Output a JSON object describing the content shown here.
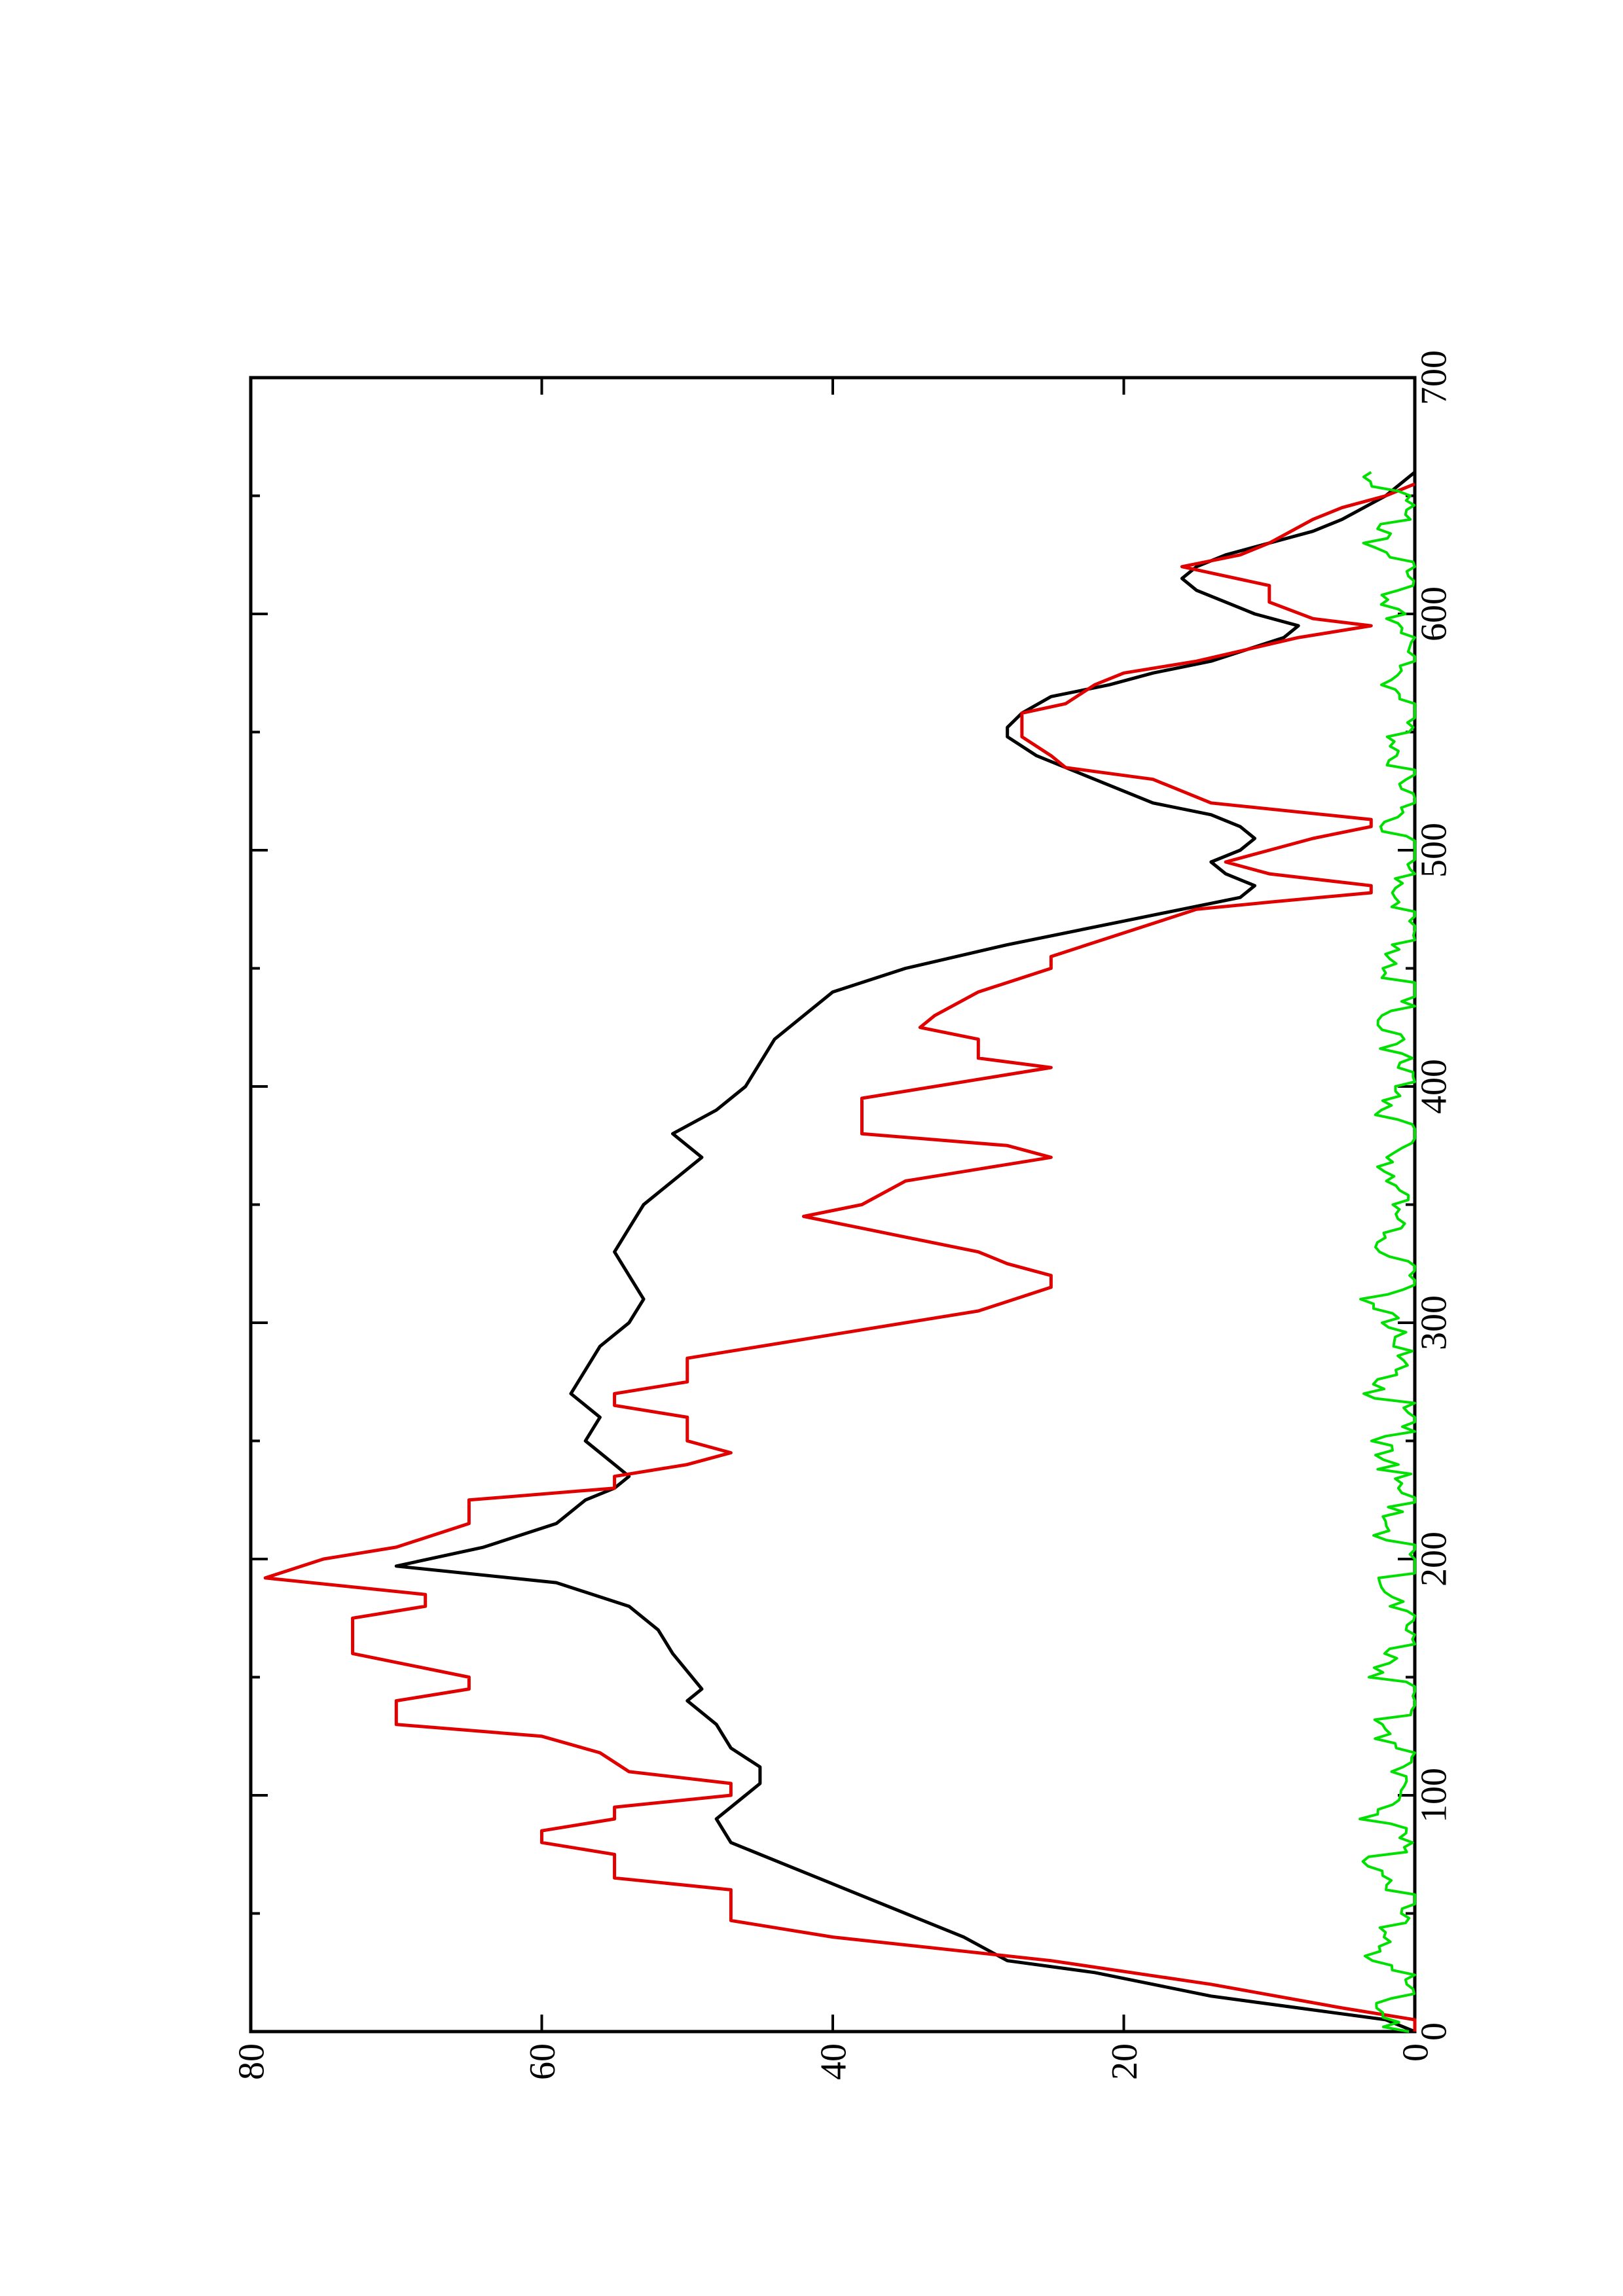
{
  "chart_data": {
    "type": "line",
    "orientation": "rotated-90-ccw",
    "title": "",
    "xlabel": "",
    "ylabel": "",
    "xlim": [
      0,
      700
    ],
    "ylim": [
      0,
      80
    ],
    "x_ticks": [
      0,
      100,
      200,
      300,
      400,
      500,
      600,
      700
    ],
    "x_minor_ticks": [
      50,
      150,
      250,
      350,
      450,
      550,
      650
    ],
    "y_ticks": [
      0,
      20,
      40,
      60,
      80
    ],
    "grid": false,
    "legend": "none",
    "series": [
      {
        "color": "#000000",
        "style": "smooth",
        "points": [
          [
            0,
            0
          ],
          [
            5,
            2
          ],
          [
            10,
            8
          ],
          [
            15,
            14
          ],
          [
            20,
            18
          ],
          [
            25,
            22
          ],
          [
            30,
            28
          ],
          [
            40,
            31
          ],
          [
            50,
            35
          ],
          [
            60,
            39
          ],
          [
            70,
            43
          ],
          [
            80,
            47
          ],
          [
            90,
            48
          ],
          [
            100,
            46
          ],
          [
            105,
            45
          ],
          [
            112,
            45
          ],
          [
            120,
            47
          ],
          [
            130,
            48
          ],
          [
            140,
            50
          ],
          [
            145,
            49
          ],
          [
            160,
            51
          ],
          [
            170,
            52
          ],
          [
            180,
            54
          ],
          [
            190,
            59
          ],
          [
            197,
            70
          ],
          [
            205,
            64
          ],
          [
            215,
            59
          ],
          [
            225,
            57
          ],
          [
            230,
            55
          ],
          [
            235,
            54
          ],
          [
            240,
            55
          ],
          [
            250,
            57
          ],
          [
            260,
            56
          ],
          [
            270,
            58
          ],
          [
            280,
            57
          ],
          [
            290,
            56
          ],
          [
            300,
            54
          ],
          [
            310,
            53
          ],
          [
            320,
            54
          ],
          [
            330,
            55
          ],
          [
            340,
            54
          ],
          [
            350,
            53
          ],
          [
            360,
            51
          ],
          [
            370,
            49
          ],
          [
            380,
            51
          ],
          [
            390,
            48
          ],
          [
            400,
            46
          ],
          [
            410,
            45
          ],
          [
            420,
            44
          ],
          [
            430,
            42
          ],
          [
            440,
            40
          ],
          [
            450,
            35
          ],
          [
            460,
            28
          ],
          [
            470,
            20
          ],
          [
            480,
            12
          ],
          [
            485,
            11
          ],
          [
            490,
            13
          ],
          [
            495,
            14
          ],
          [
            500,
            12
          ],
          [
            505,
            11
          ],
          [
            510,
            12
          ],
          [
            515,
            14
          ],
          [
            520,
            18
          ],
          [
            530,
            22
          ],
          [
            540,
            26
          ],
          [
            548,
            28
          ],
          [
            552,
            28
          ],
          [
            558,
            27
          ],
          [
            565,
            25
          ],
          [
            570,
            21
          ],
          [
            575,
            18
          ],
          [
            580,
            14
          ],
          [
            590,
            9
          ],
          [
            595,
            8
          ],
          [
            600,
            11
          ],
          [
            605,
            13
          ],
          [
            610,
            15
          ],
          [
            615,
            16
          ],
          [
            620,
            15
          ],
          [
            625,
            13
          ],
          [
            630,
            10
          ],
          [
            635,
            7
          ],
          [
            640,
            5
          ],
          [
            650,
            2
          ],
          [
            660,
            0
          ]
        ]
      },
      {
        "color": "#e00000",
        "style": "step",
        "points": [
          [
            0,
            0
          ],
          [
            5,
            0
          ],
          [
            10,
            5
          ],
          [
            20,
            14
          ],
          [
            30,
            25
          ],
          [
            40,
            40
          ],
          [
            47,
            47
          ],
          [
            60,
            47
          ],
          [
            65,
            55
          ],
          [
            75,
            55
          ],
          [
            80,
            60
          ],
          [
            85,
            60
          ],
          [
            90,
            55
          ],
          [
            95,
            55
          ],
          [
            100,
            47
          ],
          [
            105,
            47
          ],
          [
            110,
            54
          ],
          [
            118,
            56
          ],
          [
            125,
            60
          ],
          [
            130,
            70
          ],
          [
            140,
            70
          ],
          [
            145,
            65
          ],
          [
            150,
            65
          ],
          [
            160,
            73
          ],
          [
            175,
            73
          ],
          [
            180,
            68
          ],
          [
            185,
            68
          ],
          [
            192,
            79
          ],
          [
            200,
            75
          ],
          [
            205,
            70
          ],
          [
            215,
            65
          ],
          [
            225,
            65
          ],
          [
            230,
            55
          ],
          [
            235,
            55
          ],
          [
            240,
            50
          ],
          [
            245,
            47
          ],
          [
            250,
            50
          ],
          [
            260,
            50
          ],
          [
            265,
            55
          ],
          [
            270,
            55
          ],
          [
            275,
            50
          ],
          [
            285,
            50
          ],
          [
            300,
            35
          ],
          [
            305,
            30
          ],
          [
            315,
            25
          ],
          [
            320,
            25
          ],
          [
            325,
            28
          ],
          [
            330,
            30
          ],
          [
            340,
            38
          ],
          [
            345,
            42
          ],
          [
            350,
            38
          ],
          [
            360,
            35
          ],
          [
            365,
            30
          ],
          [
            370,
            25
          ],
          [
            375,
            28
          ],
          [
            380,
            38
          ],
          [
            395,
            38
          ],
          [
            400,
            33
          ],
          [
            408,
            25
          ],
          [
            412,
            30
          ],
          [
            420,
            30
          ],
          [
            425,
            34
          ],
          [
            430,
            33
          ],
          [
            440,
            30
          ],
          [
            450,
            25
          ],
          [
            455,
            25
          ],
          [
            465,
            20
          ],
          [
            475,
            15
          ],
          [
            478,
            10
          ],
          [
            482,
            3
          ],
          [
            485,
            3
          ],
          [
            490,
            10
          ],
          [
            495,
            13
          ],
          [
            500,
            10
          ],
          [
            505,
            7
          ],
          [
            510,
            3
          ],
          [
            513,
            3
          ],
          [
            520,
            14
          ],
          [
            530,
            18
          ],
          [
            535,
            24
          ],
          [
            540,
            25
          ],
          [
            548,
            27
          ],
          [
            558,
            27
          ],
          [
            562,
            24
          ],
          [
            570,
            22
          ],
          [
            575,
            20
          ],
          [
            580,
            15
          ],
          [
            590,
            8
          ],
          [
            595,
            3
          ],
          [
            598,
            7
          ],
          [
            605,
            10
          ],
          [
            612,
            10
          ],
          [
            620,
            16
          ],
          [
            625,
            12
          ],
          [
            630,
            10
          ],
          [
            640,
            7
          ],
          [
            645,
            5
          ],
          [
            650,
            2
          ],
          [
            655,
            0
          ]
        ]
      },
      {
        "color": "#00e000",
        "style": "noise",
        "points": [
          [
            0,
            1.0
          ],
          [
            10,
            2.5
          ],
          [
            20,
            1.2
          ],
          [
            30,
            2.8
          ],
          [
            40,
            1.5
          ],
          [
            50,
            2.6
          ],
          [
            60,
            1.0
          ],
          [
            70,
            2.9
          ],
          [
            80,
            1.4
          ],
          [
            90,
            3.1
          ],
          [
            100,
            1.1
          ],
          [
            110,
            2.4
          ],
          [
            120,
            1.6
          ],
          [
            130,
            2.7
          ],
          [
            140,
            1.2
          ],
          [
            150,
            2.8
          ],
          [
            160,
            1.5
          ],
          [
            170,
            2.2
          ],
          [
            180,
            1.0
          ],
          [
            190,
            1.8
          ],
          [
            200,
            0.8
          ],
          [
            210,
            2.0
          ],
          [
            220,
            1.1
          ],
          [
            230,
            2.6
          ],
          [
            240,
            1.3
          ],
          [
            250,
            2.4
          ],
          [
            260,
            1.0
          ],
          [
            270,
            2.8
          ],
          [
            280,
            1.2
          ],
          [
            290,
            2.5
          ],
          [
            300,
            1.4
          ],
          [
            310,
            2.9
          ],
          [
            320,
            1.1
          ],
          [
            330,
            2.3
          ],
          [
            340,
            1.5
          ],
          [
            350,
            2.7
          ],
          [
            360,
            1.0
          ],
          [
            370,
            2.4
          ],
          [
            380,
            1.2
          ],
          [
            390,
            1.9
          ],
          [
            400,
            1.0
          ],
          [
            410,
            2.2
          ],
          [
            420,
            0.9
          ],
          [
            430,
            2.5
          ],
          [
            440,
            1.2
          ],
          [
            450,
            2.0
          ],
          [
            460,
            0.8
          ],
          [
            470,
            1.6
          ],
          [
            480,
            0.9
          ],
          [
            490,
            1.5
          ],
          [
            500,
            0.7
          ],
          [
            510,
            1.4
          ],
          [
            520,
            0.9
          ],
          [
            530,
            2.0
          ],
          [
            540,
            1.2
          ],
          [
            550,
            1.8
          ],
          [
            560,
            0.8
          ],
          [
            570,
            1.5
          ],
          [
            580,
            0.9
          ],
          [
            590,
            1.7
          ],
          [
            600,
            1.0
          ],
          [
            610,
            2.2
          ],
          [
            620,
            1.0
          ],
          [
            630,
            2.6
          ],
          [
            640,
            1.2
          ],
          [
            650,
            2.0
          ],
          [
            660,
            3.0
          ]
        ]
      }
    ]
  }
}
